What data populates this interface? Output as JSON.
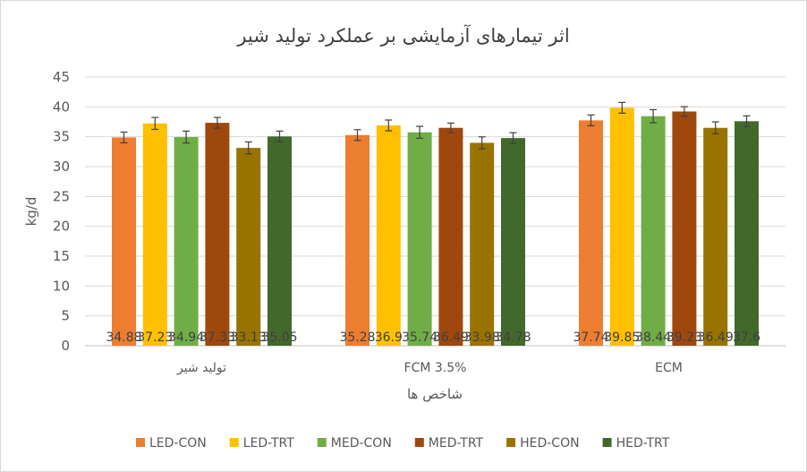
{
  "chart_data": {
    "type": "bar",
    "title": "اثر تیمارهای آزمایشی بر عملکرد تولید شیر",
    "xlabel": "شاخص ها",
    "ylabel": "kg/d",
    "ylim": [
      0,
      45
    ],
    "yticks": [
      0,
      5,
      10,
      15,
      20,
      25,
      30,
      35,
      40,
      45
    ],
    "grid": true,
    "legend_position": "bottom",
    "categories": [
      "تولید شیر",
      "FCM 3.5%",
      "ECM"
    ],
    "series": [
      {
        "name": "LED-CON",
        "color": "#ED7D31",
        "values": [
          34.88,
          35.28,
          37.74
        ],
        "errors": [
          0.9,
          0.9,
          0.9
        ],
        "labels": [
          "34.88",
          "35.28",
          "37.74"
        ]
      },
      {
        "name": "LED-TRT",
        "color": "#FFC000",
        "values": [
          37.23,
          36.9,
          39.85
        ],
        "errors": [
          1.0,
          0.9,
          0.9
        ],
        "labels": [
          "37.23",
          "36.9",
          "39.85"
        ]
      },
      {
        "name": "MED-CON",
        "color": "#70AD47",
        "values": [
          34.94,
          35.74,
          38.44
        ],
        "errors": [
          1.0,
          1.0,
          1.1
        ],
        "labels": [
          "34.94",
          "35.74",
          "38.44"
        ]
      },
      {
        "name": "MED-TRT",
        "color": "#9E480E",
        "values": [
          37.33,
          36.49,
          39.23
        ],
        "errors": [
          0.9,
          0.8,
          0.8
        ],
        "labels": [
          "37.33",
          "36.49",
          "39.23"
        ]
      },
      {
        "name": "HED-CON",
        "color": "#997300",
        "values": [
          33.13,
          33.98,
          36.49
        ],
        "errors": [
          1.0,
          1.0,
          1.0
        ],
        "labels": [
          "33.13",
          "33.98",
          "36.49"
        ]
      },
      {
        "name": "HED-TRT",
        "color": "#43682B",
        "values": [
          35.05,
          34.78,
          37.6
        ],
        "errors": [
          0.9,
          0.9,
          0.9
        ],
        "labels": [
          "35.05",
          "34.78",
          "37.6"
        ]
      }
    ]
  }
}
